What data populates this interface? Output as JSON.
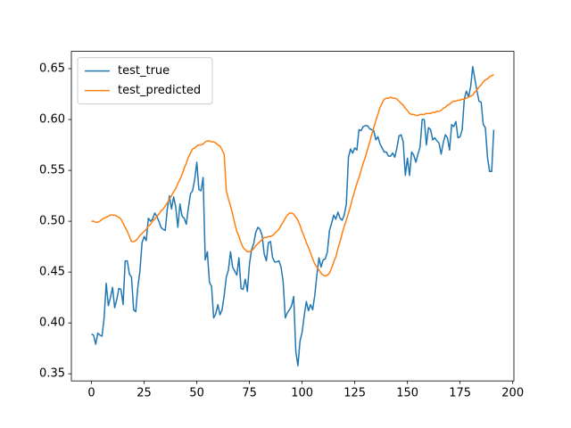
{
  "chart_data": {
    "type": "line",
    "x": [
      0,
      1,
      2,
      3,
      4,
      5,
      6,
      7,
      8,
      9,
      10,
      11,
      12,
      13,
      14,
      15,
      16,
      17,
      18,
      19,
      20,
      21,
      22,
      23,
      24,
      25,
      26,
      27,
      28,
      29,
      30,
      31,
      32,
      33,
      34,
      35,
      36,
      37,
      38,
      39,
      40,
      41,
      42,
      43,
      44,
      45,
      46,
      47,
      48,
      49,
      50,
      51,
      52,
      53,
      54,
      55,
      56,
      57,
      58,
      59,
      60,
      61,
      62,
      63,
      64,
      65,
      66,
      67,
      68,
      69,
      70,
      71,
      72,
      73,
      74,
      75,
      76,
      77,
      78,
      79,
      80,
      81,
      82,
      83,
      84,
      85,
      86,
      87,
      88,
      89,
      90,
      91,
      92,
      93,
      94,
      95,
      96,
      97,
      98,
      99,
      100,
      101,
      102,
      103,
      104,
      105,
      106,
      107,
      108,
      109,
      110,
      111,
      112,
      113,
      114,
      115,
      116,
      117,
      118,
      119,
      120,
      121,
      122,
      123,
      124,
      125,
      126,
      127,
      128,
      129,
      130,
      131,
      132,
      133,
      134,
      135,
      136,
      137,
      138,
      139,
      140,
      141,
      142,
      143,
      144,
      145,
      146,
      147,
      148,
      149,
      150,
      151,
      152,
      153,
      154,
      155,
      156,
      157,
      158,
      159,
      160,
      161,
      162,
      163,
      164,
      165,
      166,
      167,
      168,
      169,
      170,
      171,
      172,
      173,
      174,
      175,
      176,
      177,
      178,
      179,
      180,
      181,
      182,
      183,
      184,
      185,
      186,
      187,
      188,
      189,
      190,
      191
    ],
    "series": [
      {
        "name": "test_true",
        "color": "#1f77b4",
        "values": [
          0.389,
          0.388,
          0.379,
          0.39,
          0.388,
          0.387,
          0.405,
          0.439,
          0.417,
          0.425,
          0.435,
          0.415,
          0.423,
          0.434,
          0.433,
          0.418,
          0.461,
          0.461,
          0.448,
          0.445,
          0.413,
          0.411,
          0.435,
          0.451,
          0.479,
          0.485,
          0.481,
          0.503,
          0.5,
          0.502,
          0.508,
          0.505,
          0.5,
          0.494,
          0.492,
          0.491,
          0.512,
          0.525,
          0.512,
          0.524,
          0.514,
          0.494,
          0.517,
          0.505,
          0.503,
          0.497,
          0.513,
          0.527,
          0.53,
          0.541,
          0.558,
          0.531,
          0.53,
          0.543,
          0.462,
          0.47,
          0.44,
          0.436,
          0.405,
          0.409,
          0.418,
          0.408,
          0.413,
          0.427,
          0.445,
          0.452,
          0.47,
          0.455,
          0.451,
          0.447,
          0.464,
          0.434,
          0.433,
          0.443,
          0.431,
          0.458,
          0.472,
          0.478,
          0.489,
          0.494,
          0.492,
          0.486,
          0.468,
          0.461,
          0.479,
          0.48,
          0.464,
          0.46,
          0.46,
          0.461,
          0.455,
          0.44,
          0.405,
          0.41,
          0.413,
          0.417,
          0.426,
          0.372,
          0.358,
          0.382,
          0.391,
          0.407,
          0.421,
          0.412,
          0.418,
          0.413,
          0.427,
          0.447,
          0.464,
          0.455,
          0.462,
          0.463,
          0.47,
          0.491,
          0.498,
          0.506,
          0.502,
          0.509,
          0.503,
          0.501,
          0.506,
          0.517,
          0.563,
          0.571,
          0.567,
          0.572,
          0.57,
          0.59,
          0.589,
          0.593,
          0.594,
          0.594,
          0.591,
          0.59,
          0.589,
          0.58,
          0.583,
          0.576,
          0.572,
          0.568,
          0.568,
          0.564,
          0.564,
          0.567,
          0.563,
          0.572,
          0.584,
          0.585,
          0.578,
          0.545,
          0.562,
          0.545,
          0.568,
          0.565,
          0.558,
          0.566,
          0.573,
          0.6,
          0.6,
          0.575,
          0.592,
          0.59,
          0.58,
          0.582,
          0.579,
          0.577,
          0.566,
          0.577,
          0.585,
          0.582,
          0.57,
          0.595,
          0.593,
          0.598,
          0.582,
          0.583,
          0.59,
          0.62,
          0.628,
          0.622,
          0.632,
          0.652,
          0.64,
          0.628,
          0.618,
          0.617,
          0.595,
          0.592,
          0.563,
          0.549,
          0.549,
          0.59
        ]
      },
      {
        "name": "test_predicted",
        "color": "#ff7f0e",
        "values": [
          0.5,
          0.5,
          0.499,
          0.499,
          0.5,
          0.502,
          0.503,
          0.504,
          0.505,
          0.506,
          0.506,
          0.506,
          0.505,
          0.504,
          0.502,
          0.498,
          0.494,
          0.49,
          0.485,
          0.48,
          0.48,
          0.481,
          0.483,
          0.486,
          0.488,
          0.49,
          0.492,
          0.495,
          0.497,
          0.5,
          0.502,
          0.505,
          0.507,
          0.51,
          0.512,
          0.515,
          0.518,
          0.522,
          0.525,
          0.529,
          0.532,
          0.537,
          0.541,
          0.546,
          0.552,
          0.557,
          0.563,
          0.567,
          0.571,
          0.572,
          0.574,
          0.575,
          0.575,
          0.576,
          0.578,
          0.579,
          0.579,
          0.578,
          0.578,
          0.577,
          0.575,
          0.574,
          0.57,
          0.566,
          0.53,
          0.522,
          0.515,
          0.507,
          0.498,
          0.49,
          0.485,
          0.479,
          0.474,
          0.472,
          0.47,
          0.47,
          0.471,
          0.473,
          0.476,
          0.478,
          0.48,
          0.482,
          0.484,
          0.484,
          0.485,
          0.485,
          0.486,
          0.488,
          0.49,
          0.492,
          0.496,
          0.499,
          0.503,
          0.506,
          0.508,
          0.508,
          0.507,
          0.504,
          0.501,
          0.496,
          0.49,
          0.485,
          0.479,
          0.474,
          0.469,
          0.463,
          0.458,
          0.455,
          0.452,
          0.449,
          0.447,
          0.446,
          0.447,
          0.449,
          0.454,
          0.46,
          0.465,
          0.473,
          0.48,
          0.488,
          0.495,
          0.501,
          0.508,
          0.515,
          0.523,
          0.53,
          0.537,
          0.543,
          0.55,
          0.557,
          0.563,
          0.57,
          0.577,
          0.585,
          0.592,
          0.599,
          0.605,
          0.612,
          0.616,
          0.62,
          0.621,
          0.621,
          0.622,
          0.621,
          0.621,
          0.62,
          0.618,
          0.616,
          0.614,
          0.611,
          0.609,
          0.606,
          0.605,
          0.605,
          0.604,
          0.604,
          0.605,
          0.605,
          0.605,
          0.606,
          0.606,
          0.606,
          0.607,
          0.607,
          0.608,
          0.608,
          0.609,
          0.611,
          0.612,
          0.614,
          0.615,
          0.617,
          0.618,
          0.618,
          0.619,
          0.619,
          0.62,
          0.62,
          0.621,
          0.622,
          0.623,
          0.624,
          0.627,
          0.629,
          0.632,
          0.634,
          0.637,
          0.639,
          0.64,
          0.642,
          0.643,
          0.644
        ]
      }
    ],
    "xlim": [
      -9.55,
      200.55
    ],
    "xticks": [
      0,
      25,
      50,
      75,
      100,
      125,
      150,
      175,
      200
    ],
    "ylim": [
      0.343,
      0.667
    ],
    "yticks": [
      0.35,
      {
        "value": 0.4,
        "label": "0.40"
      },
      0.45,
      {
        "value": 0.5,
        "label": "0.50"
      },
      0.55,
      {
        "value": 0.6,
        "label": "0.60"
      },
      0.65
    ],
    "legend": "upper left",
    "grid": false
  }
}
